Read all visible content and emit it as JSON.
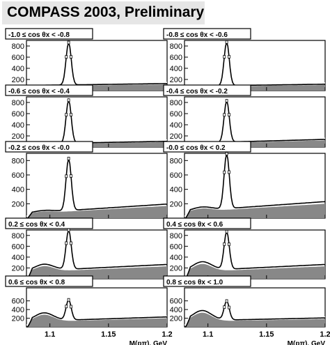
{
  "title": "COMPASS 2003, Preliminary",
  "chart_data": {
    "type": "line",
    "xlabel": "M(pπ), GeV",
    "xlim": [
      1.08,
      1.2
    ],
    "xticks": [
      "1.1",
      "1.15",
      "1.2"
    ],
    "ylim": [
      0,
      900
    ],
    "yticks": [
      "200",
      "400",
      "600",
      "800"
    ],
    "colors": {
      "fit": "#000000",
      "background": "#888888",
      "data": "#000000"
    },
    "panels": [
      {
        "label": "-1.0 ≤ cos θx < -0.8",
        "peak": 760,
        "bg": [
          80,
          110
        ],
        "shoulder": 0,
        "yticks": [
          "200",
          "400",
          "600",
          "800"
        ]
      },
      {
        "label": "-0.8 ≤ cos θx < -0.6",
        "peak": 780,
        "bg": [
          70,
          100
        ],
        "shoulder": 0,
        "yticks": [
          "200",
          "400",
          "600",
          "800"
        ]
      },
      {
        "label": "-0.6 ≤ cos θx < -0.4",
        "peak": 770,
        "bg": [
          50,
          90
        ],
        "shoulder": 0,
        "yticks": [
          "200",
          "400",
          "600",
          "800"
        ]
      },
      {
        "label": "-0.4 ≤ cos θx < -0.2",
        "peak": 740,
        "bg": [
          60,
          120
        ],
        "shoulder": 0,
        "yticks": [
          "200",
          "400",
          "600",
          "800"
        ]
      },
      {
        "label": "-0.2 ≤ cos θx < -0.0",
        "peak": 720,
        "bg": [
          60,
          170
        ],
        "shoulder": 20,
        "yticks": [
          "200",
          "400",
          "600",
          "800"
        ]
      },
      {
        "label": "-0.0 ≤ cos θx < 0.2",
        "peak": 760,
        "bg": [
          80,
          200
        ],
        "shoulder": 40,
        "yticks": [
          "200",
          "400",
          "600",
          "800"
        ]
      },
      {
        "label": "0.2 ≤ cos θx < 0.4",
        "peak": 720,
        "bg": [
          120,
          230
        ],
        "shoulder": 100,
        "yticks": [
          "200",
          "400",
          "600",
          "800"
        ]
      },
      {
        "label": "0.4 ≤ cos θx < 0.6",
        "peak": 690,
        "bg": [
          120,
          230
        ],
        "shoulder": 140,
        "yticks": [
          "200",
          "400",
          "600",
          "800"
        ]
      },
      {
        "label": "0.6 ≤ cos θx < 0.8",
        "peak": 460,
        "bg": [
          110,
          200
        ],
        "shoulder": 160,
        "yticks": [
          "200",
          "400",
          "600"
        ]
      },
      {
        "label": "0.8 ≤ cos θx < 1.0",
        "peak": 430,
        "bg": [
          120,
          180
        ],
        "shoulder": 200,
        "yticks": [
          "200",
          "400",
          "600"
        ]
      }
    ]
  }
}
